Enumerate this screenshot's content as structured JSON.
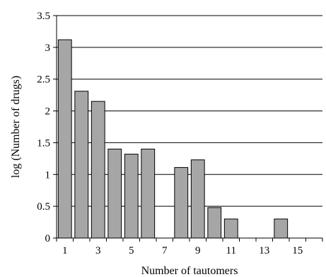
{
  "chart_data": {
    "type": "bar",
    "title": "",
    "xlabel": "Number of tautomers",
    "ylabel": "log (Number of drugs)",
    "x": [
      1,
      2,
      3,
      4,
      5,
      6,
      7,
      8,
      9,
      10,
      11,
      12,
      13,
      14,
      15,
      16
    ],
    "values": [
      3.12,
      2.31,
      2.15,
      1.4,
      1.32,
      1.4,
      0,
      1.11,
      1.23,
      0.48,
      0.3,
      0,
      0,
      0.3,
      0,
      0
    ],
    "x_tick_labels": [
      "1",
      "3",
      "5",
      "7",
      "9",
      "11",
      "13",
      "15"
    ],
    "x_tick_values": [
      1,
      3,
      5,
      7,
      9,
      11,
      13,
      15
    ],
    "y_ticks": [
      0,
      0.5,
      1,
      1.5,
      2,
      2.5,
      3,
      3.5
    ],
    "y_tick_labels": [
      "0",
      "0.5",
      "1",
      "1.5",
      "2",
      "2.5",
      "3",
      "3.5"
    ],
    "ylim": [
      0,
      3.5
    ],
    "xlim": [
      0.5,
      16.5
    ],
    "grid": "horizontal",
    "legend": "none",
    "colors": {
      "bar_fill": "#a6a6a6",
      "bar_stroke": "#000000",
      "grid": "#000000"
    }
  }
}
